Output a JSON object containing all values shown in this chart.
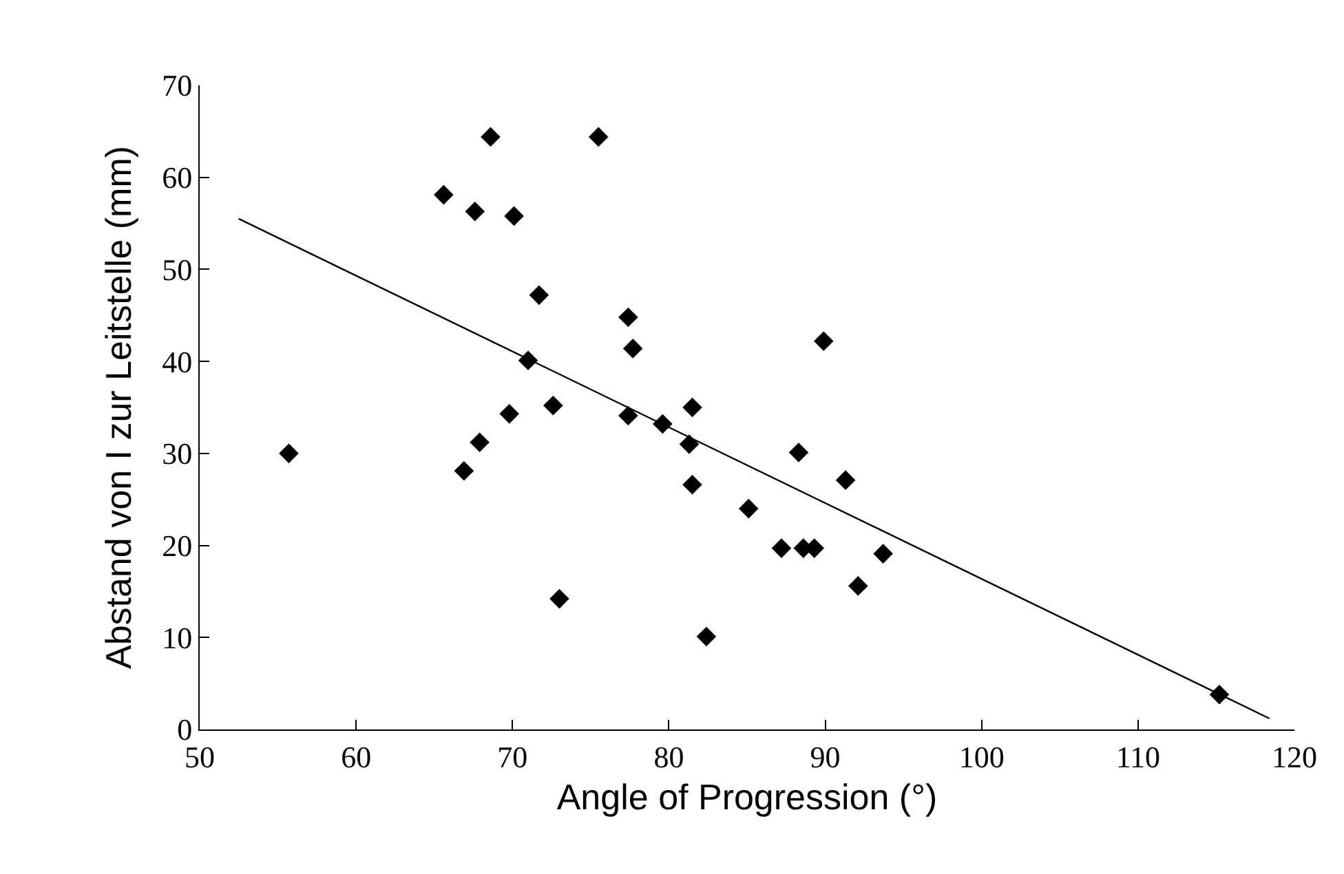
{
  "chart_data": {
    "type": "scatter",
    "xlabel": "Angle of Progression (°)",
    "ylabel": "Abstand von I zur Leitstelle (mm)",
    "xlim": [
      50,
      120
    ],
    "xticks": [
      50,
      60,
      70,
      80,
      90,
      100,
      110,
      120
    ],
    "ylim": [
      0,
      70
    ],
    "yticks": [
      0,
      10,
      20,
      30,
      40,
      50,
      60,
      70
    ],
    "grid": false,
    "legend": false,
    "series": [
      {
        "color": "#000000",
        "marker": "diamond",
        "x": [
          55.7,
          65.6,
          66.9,
          67.6,
          67.9,
          68.6,
          69.8,
          70.1,
          71.0,
          71.7,
          72.6,
          73.0,
          75.5,
          77.4,
          77.7,
          77.4,
          79.6,
          81.5,
          81.3,
          81.5,
          82.4,
          85.1,
          87.2,
          88.3,
          88.6,
          89.3,
          89.9,
          91.3,
          92.1,
          93.7,
          115.2
        ],
        "values": [
          30.0,
          58.1,
          28.1,
          56.3,
          31.2,
          64.4,
          34.3,
          55.8,
          40.1,
          47.2,
          35.2,
          14.2,
          64.4,
          44.8,
          41.4,
          34.1,
          33.2,
          35.0,
          31.0,
          26.6,
          10.1,
          24.0,
          19.7,
          30.1,
          19.7,
          19.7,
          42.2,
          27.1,
          15.6,
          19.1,
          3.8
        ]
      },
      {
        "type": "line",
        "color": "#000000",
        "x": [
          52.5,
          118.4
        ],
        "values": [
          55.5,
          1.2
        ],
        "line_style": "solid",
        "marker": "none"
      }
    ]
  }
}
